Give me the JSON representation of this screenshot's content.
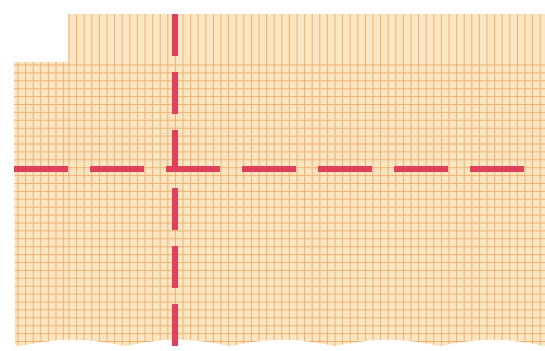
{
  "graph_paper": {
    "paper_color": "#fbe6c4",
    "line_color": "#f0b070",
    "guide_color": "#e0405a",
    "background_color": "#ffffff",
    "vertical_line_spacing": 7.6,
    "horizontal_line_spacing": 7.9
  }
}
